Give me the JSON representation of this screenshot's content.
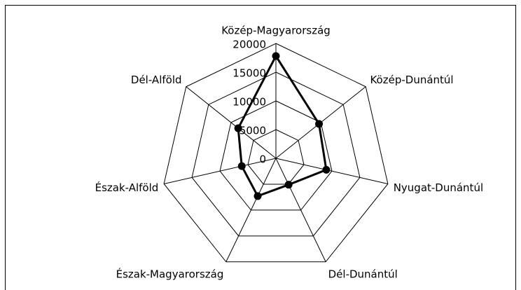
{
  "chart_data": {
    "type": "radar",
    "categories": [
      "Közép-Magyarország",
      "Közép-Dunántúl",
      "Nyugat-Dunántúl",
      "Dél-Dunántúl",
      "Észak-Magyarország",
      "Észak-Alföld",
      "Dél-Alföld"
    ],
    "series": [
      {
        "name": null,
        "color": "#000000",
        "values": [
          17800,
          9600,
          9000,
          5100,
          7300,
          6100,
          8400
        ]
      }
    ],
    "rlim": [
      0,
      20000
    ],
    "rticks": [
      0,
      5000,
      10000,
      15000,
      20000
    ],
    "grid": true
  }
}
